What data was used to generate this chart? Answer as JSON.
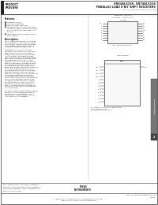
{
  "title_left1": "PRODUCT",
  "title_left2": "PREVIEW",
  "title_right1": "SN54ALS166, SN74ALS166",
  "title_right2": "PARALLEL-LOAD 8-BIT SHIFT REGISTERS",
  "subtitle": "SCLS037A  JUNE 1985  REVISED JANUARY 1988",
  "features": [
    "Synchronous Load",
    "Shunt Operating Clear",
    "Parallel to Serial Conversion",
    "Package Options Include Plastic 'Small Outline' Packages, Ceramic Chip Carriers and Standard Plastic and Ceramic DIP and SPG",
    "Dependable Texas Instruments Quality and Reliability"
  ],
  "desc_title": "Description",
  "desc_paras": [
    "The 'ALS166 8-bit shift register is compatible with most other TTL logic families. All inputs are buffered to lower the drive requirements. Input clamping diodes minimize switching transients and simplify system design.",
    "These parallel in or serial in, serial out registers have a complexity of 77 equivalent gates on a monolithic chip. They feature parallel/SIN inputs and all-controlling clear input. The register is an eight-bit-positive-edge-scheduled by the shift/load input. When high, this input enables the serial data input and couples the eight flip-flops for serial shifting with each clock pulse. When low, the provided (synchronous shift-mode) is disabled and synchronous clocking accepts the true clock clock pulse. During parallel loading, serial data flow is inhibited. Clocking is accomplished on the low-to-high-level edge of the clock pulse through a two-input positive NOR gate permitting one input to be used as a clock enable at those times functions. Loading when low enables the clear clock input. Thus, all sources allows the output clock to be free-running and the register can be stopped on command with the CLK input at the right configuration. The clock inhibit to the high level only when the clock input is high, is sufficient about clear input overrides all other inputs, including the clock, and sets all flip-flops to zero.",
    "The SN54ALS166 is characterized for operation over the full military temperature range of -55 degrees C to +125 degrees C. The SN74ALS166 is characterized for operation from 0 degrees C to 70 degrees C."
  ],
  "tab_text": "ALS and AS Circuits",
  "tab_num": "2",
  "footer_left": "UNLESS OTHERWISE NOTED THESE CIRCUITS ARE DESIGNED FOR USE WITH 5V SUPPLY VOLTAGE THIS DOCUMENT IS INTENDED AS A GUIDE FOR DESIGN ENGINEERS AND NOT AS A REPRESENTATION OF PRODUCT CHARACTERISTICS",
  "footer_ti": "TEXAS\nINSTRUMENTS",
  "footer_copy": "Copyright (c) 1985, Texas Instruments Incorporated",
  "page_num": "3-167",
  "bg_color": "#ffffff",
  "text_color": "#1a1a1a",
  "dark_color": "#222222",
  "gray_color": "#888888",
  "line_color": "#444444"
}
